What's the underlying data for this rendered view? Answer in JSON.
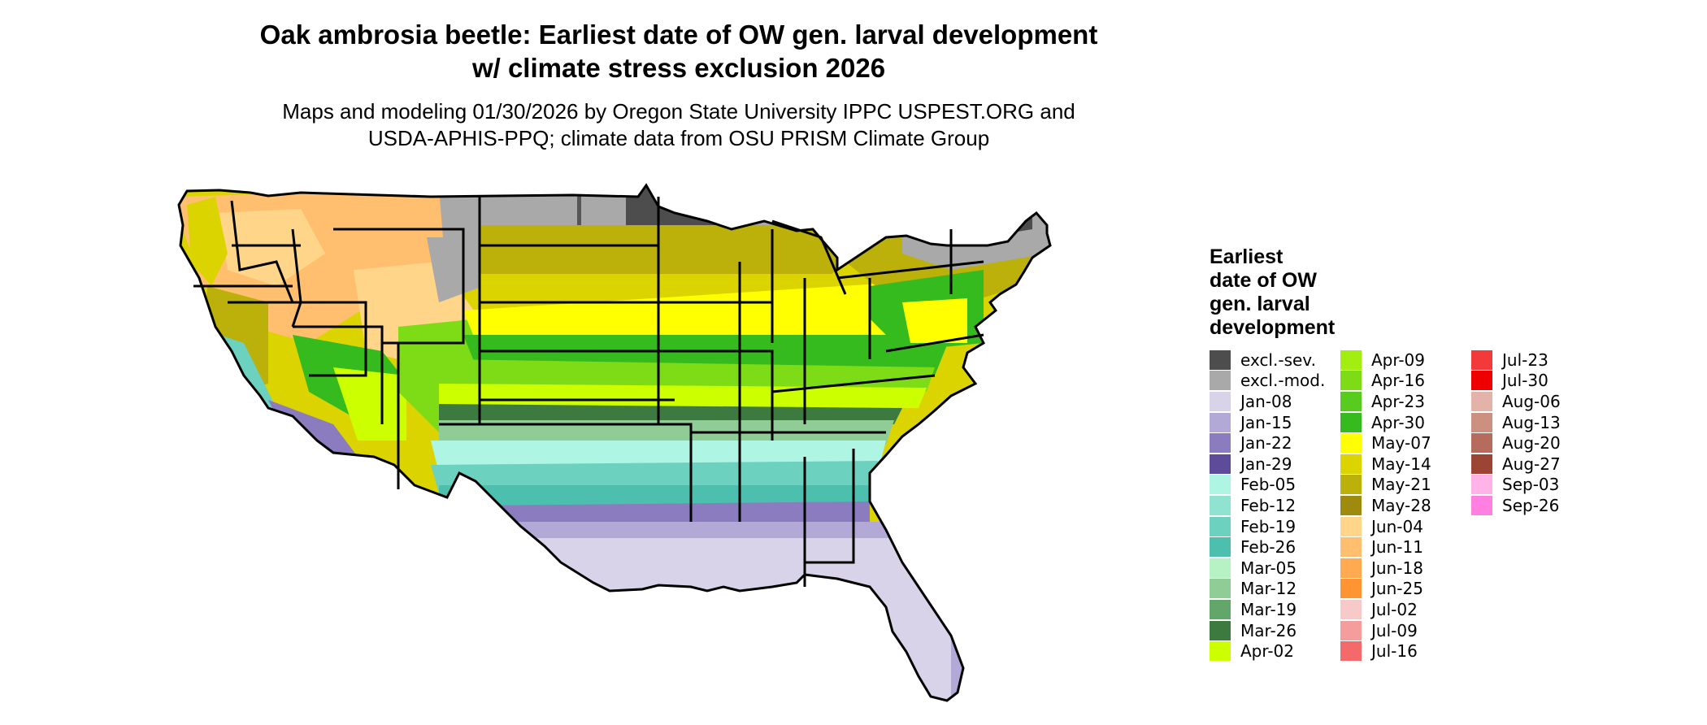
{
  "title_line1": "Oak ambrosia beetle: Earliest date of OW gen. larval development",
  "title_line2": "w/ climate stress exclusion 2026",
  "subtitle_line1": "Maps and modeling 01/30/2026 by Oregon State University IPPC USPEST.ORG and",
  "subtitle_line2": "USDA-APHIS-PPQ; climate data from OSU PRISM Climate Group",
  "legend": {
    "title": [
      "Earliest",
      "date of OW",
      "gen. larval",
      "development"
    ],
    "columns": [
      [
        {
          "label": "excl.-sev.",
          "color": "#4d4d4d"
        },
        {
          "label": "excl.-mod.",
          "color": "#a9a9a9"
        },
        {
          "label": "Jan-08",
          "color": "#d8d3e8"
        },
        {
          "label": "Jan-15",
          "color": "#b3a9d6"
        },
        {
          "label": "Jan-22",
          "color": "#8b7bbf"
        },
        {
          "label": "Jan-29",
          "color": "#5e4c9b"
        },
        {
          "label": "Feb-05",
          "color": "#aff5e4"
        },
        {
          "label": "Feb-12",
          "color": "#8fe3d0"
        },
        {
          "label": "Feb-19",
          "color": "#6dd1bf"
        },
        {
          "label": "Feb-26",
          "color": "#4dbfae"
        },
        {
          "label": "Mar-05",
          "color": "#b6f2c3"
        },
        {
          "label": "Mar-12",
          "color": "#8fcc96"
        },
        {
          "label": "Mar-19",
          "color": "#62a66a"
        },
        {
          "label": "Mar-26",
          "color": "#3d7a40"
        },
        {
          "label": "Apr-02",
          "color": "#ccff00"
        }
      ],
      [
        {
          "label": "Apr-09",
          "color": "#a2ee10"
        },
        {
          "label": "Apr-16",
          "color": "#7edc16"
        },
        {
          "label": "Apr-23",
          "color": "#58cc1e"
        },
        {
          "label": "Apr-30",
          "color": "#36bb1e"
        },
        {
          "label": "May-07",
          "color": "#ffff00"
        },
        {
          "label": "May-14",
          "color": "#dcd400"
        },
        {
          "label": "May-21",
          "color": "#bcb00a"
        },
        {
          "label": "May-28",
          "color": "#9e8a0c"
        },
        {
          "label": "Jun-04",
          "color": "#ffd58a"
        },
        {
          "label": "Jun-11",
          "color": "#ffbf6e"
        },
        {
          "label": "Jun-18",
          "color": "#ffa950"
        },
        {
          "label": "Jun-25",
          "color": "#ff9432"
        },
        {
          "label": "Jul-02",
          "color": "#f7c9c9"
        },
        {
          "label": "Jul-09",
          "color": "#f59d9d"
        },
        {
          "label": "Jul-16",
          "color": "#f46a6a"
        }
      ],
      [
        {
          "label": "Jul-23",
          "color": "#f23a3a"
        },
        {
          "label": "Jul-30",
          "color": "#ee0000"
        },
        {
          "label": "Aug-06",
          "color": "#e3b3aa"
        },
        {
          "label": "Aug-13",
          "color": "#cc9080"
        },
        {
          "label": "Aug-20",
          "color": "#b66c5c"
        },
        {
          "label": "Aug-27",
          "color": "#9c4535"
        },
        {
          "label": "Sep-03",
          "color": "#ffb3e6"
        },
        {
          "label": "Sep-26",
          "color": "#ff80e0"
        }
      ]
    ]
  }
}
